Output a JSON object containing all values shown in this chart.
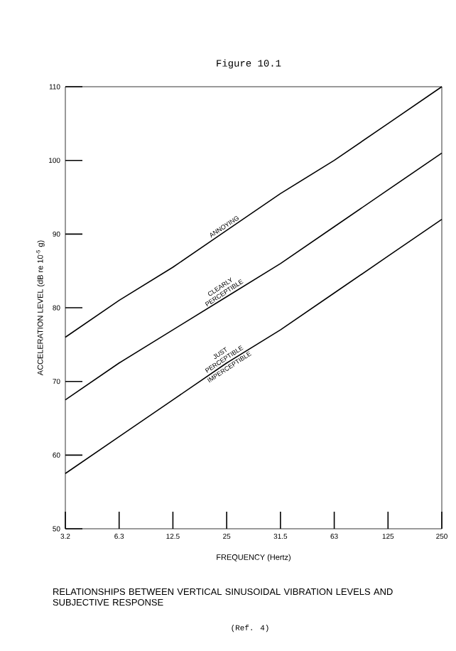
{
  "chart_data": {
    "type": "line",
    "title": "Figure 10.1",
    "xlabel": "FREQUENCY (Hertz)",
    "ylabel": "ACCELERATION LEVEL (dB re 10$^{-5}$ g)",
    "categories": [
      "3.2",
      "6.3",
      "12.5",
      "25",
      "31.5",
      "63",
      "125",
      "250"
    ],
    "series": [
      {
        "color": "#000000",
        "values": [
          76,
          81,
          85.5,
          90.5,
          95.5,
          100,
          105,
          110
        ]
      },
      {
        "color": "#000000",
        "values": [
          67.5,
          72.5,
          77,
          81.5,
          86,
          91,
          96,
          101
        ]
      },
      {
        "color": "#000000",
        "values": [
          57.5,
          62.5,
          67.5,
          72.5,
          77,
          82,
          87,
          92
        ]
      }
    ],
    "ylim": [
      50,
      110
    ],
    "yticks": [
      50,
      60,
      70,
      80,
      90,
      100,
      110
    ],
    "marker": "none",
    "line_style": "solid",
    "grid": false,
    "annotations": [
      "ANNOYING",
      "CLEARLY PERCEPTIBLE",
      "JUST PERCEPTIBLE",
      "IMPERCEPTIBLE",
      "RELATIONSHIPS BETWEEN VERTICAL SINUSOIDAL VIBRATION LEVELS AND SUBJECTIVE RESPONSE",
      "(Ref. 4)"
    ]
  }
}
